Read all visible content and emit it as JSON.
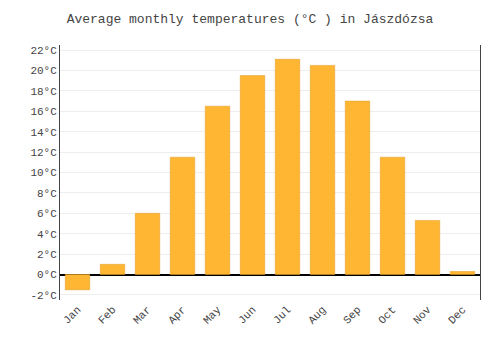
{
  "chart_data": {
    "type": "bar",
    "title": "Average monthly temperatures (°C ) in Jászdózsa",
    "categories": [
      "Jan",
      "Feb",
      "Mar",
      "Apr",
      "May",
      "Jun",
      "Jul",
      "Aug",
      "Sep",
      "Oct",
      "Nov",
      "Dec"
    ],
    "values": [
      -1.5,
      1.0,
      6.0,
      11.5,
      16.5,
      19.5,
      21.1,
      20.5,
      17.0,
      11.5,
      5.3,
      0.3
    ],
    "color": "#FFB733",
    "ylim": [
      -2.5,
      22.5
    ],
    "yticks": [
      {
        "value": -2,
        "label": "-2°C"
      },
      {
        "value": 0,
        "label": "0°C"
      },
      {
        "value": 2,
        "label": "2°C"
      },
      {
        "value": 4,
        "label": "4°C"
      },
      {
        "value": 6,
        "label": "6°C"
      },
      {
        "value": 8,
        "label": "8°C"
      },
      {
        "value": 10,
        "label": "10°C"
      },
      {
        "value": 12,
        "label": "12°C"
      },
      {
        "value": 14,
        "label": "14°C"
      },
      {
        "value": 16,
        "label": "16°C"
      },
      {
        "value": 18,
        "label": "18°C"
      },
      {
        "value": 20,
        "label": "20°C"
      },
      {
        "value": 22,
        "label": "22°C"
      }
    ],
    "grid": true
  }
}
